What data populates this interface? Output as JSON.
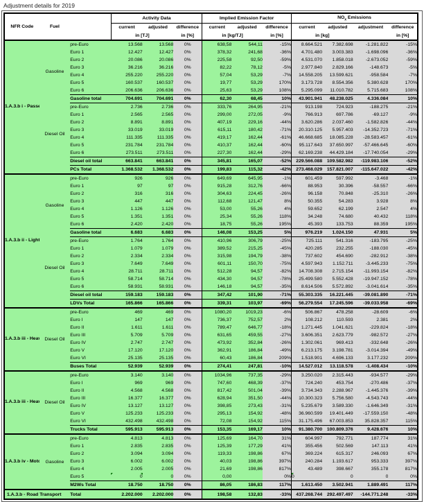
{
  "title": "Adjustment details for 2019",
  "colors": {
    "green": "#9DF39D",
    "grey": "#D9D9D9"
  },
  "header": {
    "col_nfr": "NFR Code",
    "col_fuel": "Fuel",
    "groups": [
      {
        "title": "Activity Data",
        "cols": [
          "current",
          "adjusted",
          "difference"
        ],
        "unit_val": "in [TJ]",
        "unit_dif": "in [%]"
      },
      {
        "title": "Implied Emission Factor",
        "cols": [
          "current",
          "adjusted",
          "difference"
        ],
        "unit_val": "in [kg/TJ]",
        "unit_dif": "in [%]"
      },
      {
        "title_pre": "NO",
        "title_sub": "x",
        "title_post": " Emissions",
        "cols": [
          "current",
          "adjusted",
          "adjustment",
          "difference"
        ],
        "unit_val": "in [kg]",
        "unit_dif": "in [%]"
      }
    ]
  },
  "sections": [
    {
      "nfr": "1.A.3.b i -\nPassenger\nCars",
      "groups": [
        {
          "fuel": "Gasoline",
          "rows": [
            [
              "pre-Euro",
              "13.568",
              "13.568",
              "0%",
              "638,58",
              "544,11",
              "-15%",
              "8.664.521",
              "7.382.698",
              "-1.281.822",
              "-15%"
            ],
            [
              "Euro 1",
              "12.427",
              "12.427",
              "0%",
              "378,32",
              "241,68",
              "-36%",
              "4.701.480",
              "3.003.383",
              "-1.698.096",
              "-36%"
            ],
            [
              "Euro 2",
              "20.086",
              "20.086",
              "0%",
              "225,58",
              "92,50",
              "-59%",
              "4.531.070",
              "1.858.018",
              "-2.673.052",
              "-59%"
            ],
            [
              "Euro 3",
              "36.216",
              "36.216",
              "0%",
              "82,22",
              "78,12",
              "-5%",
              "2.977.840",
              "2.829.166",
              "-148.673",
              "-5%"
            ],
            [
              "Euro 4",
              "255.220",
              "255.220",
              "0%",
              "57,04",
              "53,29",
              "-7%",
              "14.558.205",
              "13.599.621",
              "-958.584",
              "-7%"
            ],
            [
              "Euro 5",
              "160.537",
              "160.537",
              "0%",
              "19,77",
              "53,29",
              "170%",
              "3.173.728",
              "8.554.356",
              "5.380.628",
              "170%"
            ],
            [
              "Euro 6",
              "206.636",
              "206.636",
              "0%",
              "25,63",
              "53,29",
              "108%",
              "5.295.099",
              "11.010.782",
              "5.715.683",
              "108%"
            ]
          ],
          "total": [
            "Gasoline total",
            "704.691",
            "704.691",
            "0%",
            "62,30",
            "68,45",
            "10%",
            "43.901.941",
            "48.238.025",
            "4.336.084",
            "10%"
          ]
        },
        {
          "fuel": "Diesel Oil",
          "rows": [
            [
              "pre-Euro",
              "2.736",
              "2.736",
              "0%",
              "333,76",
              "264,95",
              "-21%",
              "913.198",
              "724.923",
              "-188.275",
              "-21%"
            ],
            [
              "Euro 1",
              "2.565",
              "2.565",
              "0%",
              "299,00",
              "272,05",
              "-9%",
              "766.913",
              "697.786",
              "-69.127",
              "-9%"
            ],
            [
              "Euro 2",
              "8.891",
              "8.891",
              "0%",
              "407,19",
              "229,16",
              "-44%",
              "3.620.286",
              "2.037.460",
              "-1.582.826",
              "-44%"
            ],
            [
              "Euro 3",
              "33.019",
              "33.019",
              "0%",
              "615,11",
              "180,42",
              "-71%",
              "20.310.125",
              "5.957.403",
              "-14.352.723",
              "-71%"
            ],
            [
              "Euro 4",
              "111.335",
              "111.335",
              "0%",
              "419,17",
              "162,44",
              "-61%",
              "46.668.685",
              "18.085.228",
              "-28.583.457",
              "-61%"
            ],
            [
              "Euro 5",
              "231.784",
              "231.784",
              "0%",
              "410,37",
              "162,44",
              "-60%",
              "95.117.643",
              "37.650.997",
              "-57.466.645",
              "-60%"
            ],
            [
              "Euro 6",
              "273.511",
              "273.511",
              "0%",
              "227,30",
              "162,44",
              "-29%",
              "62.169.238",
              "44.429.184",
              "-17.740.054",
              "-29%"
            ]
          ],
          "total": [
            "Diesel oil total",
            "663.841",
            "663.841",
            "0%",
            "345,81",
            "165,07",
            "-52%",
            "229.566.088",
            "109.582.982",
            "-119.983.106",
            "-52%"
          ]
        }
      ],
      "section_total": [
        "PCs Total",
        "1.368.532",
        "1.368.532",
        "0%",
        "199,83",
        "115,32",
        "-42%",
        "273.468.029",
        "157.821.007",
        "-115.647.022",
        "-42%"
      ]
    },
    {
      "nfr": "1.A.3.b ii  -\nLight Duty\nVehicles\n(LDVs)",
      "groups": [
        {
          "fuel": "Gasoline",
          "rows": [
            [
              "pre-Euro",
              "926",
              "926",
              "0%",
              "649,69",
              "645,95",
              "-1%",
              "601.459",
              "597.992",
              "-3.468",
              "-1%"
            ],
            [
              "Euro 1",
              "97",
              "97",
              "0%",
              "915,28",
              "312,76",
              "-66%",
              "88.953",
              "30.396",
              "-58.557",
              "-66%"
            ],
            [
              "Euro 2",
              "316",
              "316",
              "0%",
              "304,63",
              "224,45",
              "-26%",
              "96.158",
              "70.848",
              "-25.310",
              "-26%"
            ],
            [
              "Euro 3",
              "447",
              "447",
              "0%",
              "112,68",
              "121,47",
              "8%",
              "50.355",
              "54.283",
              "3.928",
              "8%"
            ],
            [
              "Euro 4",
              "1.126",
              "1.126",
              "0%",
              "53,00",
              "55,26",
              "4%",
              "59.652",
              "62.199",
              "2.547",
              "4%"
            ],
            [
              "Euro 5",
              "1.351",
              "1.351",
              "0%",
              "25,34",
              "55,26",
              "118%",
              "34.248",
              "74.680",
              "40.432",
              "118%"
            ],
            [
              "Euro 6",
              "2.420",
              "2.420",
              "0%",
              "18,75",
              "55,26",
              "195%",
              "45.393",
              "133.753",
              "88.359",
              "195%"
            ]
          ],
          "total": [
            "Gasoline total",
            "6.683",
            "6.683",
            "0%",
            "146,08",
            "153,25",
            "5%",
            "976.219",
            "1.024.150",
            "47.931",
            "5%"
          ]
        },
        {
          "fuel": "Diesel Oil",
          "rows": [
            [
              "pre-Euro",
              "1.764",
              "1.764",
              "0%",
              "410,96",
              "306,79",
              "-25%",
              "725.111",
              "541.316",
              "-183.795",
              "-25%"
            ],
            [
              "Euro 1",
              "1.079",
              "1.079",
              "0%",
              "389,52",
              "215,25",
              "-45%",
              "420.285",
              "232.255",
              "-188.030",
              "-45%"
            ],
            [
              "Euro 2",
              "2.334",
              "2.334",
              "0%",
              "315,98",
              "194,79",
              "-38%",
              "737.602",
              "454.690",
              "-282.912",
              "-38%"
            ],
            [
              "Euro 3",
              "7.649",
              "7.649",
              "0%",
              "601,11",
              "150,70",
              "-75%",
              "4.597.943",
              "1.152.711",
              "-3.445.233",
              "-75%"
            ],
            [
              "Euro 4",
              "28.711",
              "28.711",
              "0%",
              "512,28",
              "94,57",
              "-82%",
              "14.708.308",
              "2.715.154",
              "-11.993.154",
              "-82%"
            ],
            [
              "Euro 5",
              "58.714",
              "58.714",
              "0%",
              "434,30",
              "94,57",
              "-78%",
              "25.499.580",
              "5.552.428",
              "-19.947.152",
              "-78%"
            ],
            [
              "Euro 6",
              "58.931",
              "58.931",
              "0%",
              "146,18",
              "94,57",
              "-35%",
              "8.614.506",
              "5.572.892",
              "-3.041.614",
              "-35%"
            ]
          ],
          "total": [
            "Diesel oil total",
            "159.183",
            "159.183",
            "0%",
            "347,42",
            "101,90",
            "-71%",
            "55.303.335",
            "16.221.445",
            "-39.081.890",
            "-71%"
          ]
        }
      ],
      "section_total": [
        "LDVs Total",
        "165.866",
        "165.866",
        "0%",
        "339,31",
        "103,97",
        "-69%",
        "56.279.554",
        "17.245.596",
        "-39.033.958",
        "-69%"
      ]
    },
    {
      "nfr": "1.A.3.b iii -\nHeavy Duty\nVehicle:\nBuses",
      "groups": [
        {
          "fuel": "Diesel Oil",
          "rows": [
            [
              "pre-Euro",
              "469",
              "469",
              "0%",
              "1080,20",
              "1019,23",
              "-6%",
              "506.867",
              "478.258",
              "-28.609",
              "-6%"
            ],
            [
              "Euro I",
              "147",
              "147",
              "0%",
              "736,37",
              "752,57",
              "2%",
              "108.212",
              "110.593",
              "2.381",
              "2%"
            ],
            [
              "Euro II",
              "1.611",
              "1.611",
              "0%",
              "789,47",
              "646,77",
              "-18%",
              "1.271.445",
              "1.041.621",
              "-229.824",
              "-18%"
            ],
            [
              "Euro III",
              "5.709",
              "5.709",
              "0%",
              "631,65",
              "459,55",
              "-27%",
              "3.606.351",
              "2.623.779",
              "-982.572",
              "-27%"
            ],
            [
              "Euro IV",
              "2.747",
              "2.747",
              "0%",
              "473,92",
              "352,84",
              "-26%",
              "1.302.061",
              "969.413",
              "-332.648",
              "-26%"
            ],
            [
              "Euro V",
              "17.120",
              "17.120",
              "0%",
              "362,91",
              "186,84",
              "-49%",
              "6.213.175",
              "3.198.781",
              "-3.014.394",
              "-49%"
            ],
            [
              "Euro VI",
              "25.135",
              "25.135",
              "0%",
              "60,43",
              "186,84",
              "209%",
              "1.518.901",
              "4.696.133",
              "3.177.232",
              "209%"
            ]
          ],
          "total": [
            "Buses Total",
            "52.939",
            "52.939",
            "0%",
            "274,41",
            "247,81",
            "-10%",
            "14.527.012",
            "13.118.578",
            "-1.408.434",
            "-10%"
          ]
        }
      ],
      "section_total": null
    },
    {
      "nfr": "1.A.3.b iii -\nHeavy Duty\nVehicle:\nTrucks &\nLorries",
      "groups": [
        {
          "fuel": "Diesel Oil",
          "rows": [
            [
              "pre-Euro",
              "3.140",
              "3.140",
              "0%",
              "1034,96",
              "737,35",
              "-29%",
              "3.250.020",
              "2.315.443",
              "-934.577",
              "-29%"
            ],
            [
              "Euro I",
              "969",
              "969",
              "0%",
              "747,60",
              "468,39",
              "-37%",
              "724.240",
              "453.754",
              "-270.486",
              "-37%"
            ],
            [
              "Euro II",
              "4.568",
              "4.568",
              "0%",
              "817,42",
              "501,04",
              "-39%",
              "3.734.343",
              "2.288.967",
              "-1.445.376",
              "-39%"
            ],
            [
              "Euro III",
              "16.377",
              "16.377",
              "0%",
              "628,94",
              "351,50",
              "-44%",
              "10.300.323",
              "5.756.580",
              "-4.543.743",
              "-44%"
            ],
            [
              "Euro IV",
              "13.127",
              "13.127",
              "0%",
              "398,85",
              "273,43",
              "-31%",
              "5.235.679",
              "3.589.330",
              "-1.646.349",
              "-31%"
            ],
            [
              "Euro V",
              "125.233",
              "125.233",
              "0%",
              "295,13",
              "154,92",
              "-48%",
              "36.960.599",
              "19.401.449",
              "-17.559.150",
              "-48%"
            ],
            [
              "Euro VI",
              "432.498",
              "432.498",
              "0%",
              "72,08",
              "154,92",
              "115%",
              "31.175.496",
              "67.003.853",
              "35.828.357",
              "115%"
            ]
          ],
          "total": [
            "Trucks Total",
            "595.913",
            "595.913",
            "0%",
            "153,35",
            "169,17",
            "10%",
            "91.380.700",
            "100.809.376",
            "9.428.676",
            "10%"
          ]
        }
      ],
      "section_total": null
    },
    {
      "nfr": "1.A.3.b iv -\nMotorised\nTwo-\nWheelers\n(M2Ws)",
      "groups": [
        {
          "fuel": "Gasoline",
          "rows": [
            [
              "pre-Euro",
              "4.813",
              "4.813",
              "0%",
              "125,69",
              "164,70",
              "31%",
              "604.997",
              "792.771",
              "187.774",
              "31%"
            ],
            [
              "Euro 1",
              "2.835",
              "2.835",
              "0%",
              "125,39",
              "177,29",
              "41%",
              "355.456",
              "502.569",
              "147.113",
              "41%"
            ],
            [
              "Euro 2",
              "3.094",
              "3.094",
              "0%",
              "119,33",
              "198,86",
              "67%",
              "369.224",
              "615.317",
              "246.093",
              "67%"
            ],
            [
              "Euro 3",
              "6.002",
              "6.002",
              "0%",
              "40,03",
              "198,86",
              "397%",
              "240.284",
              "1.193.617",
              "953.333",
              "397%"
            ],
            [
              "Euro 4",
              "2.005",
              "2.005",
              "0%",
              "21,69",
              "198,86",
              "817%",
              "43.489",
              "398.667",
              "355.178",
              "817%"
            ],
            [
              "Euro 5",
              "0",
              "0",
              "0%",
              "0,00",
              "",
              "0%",
              "0",
              "0",
              "0",
              "0%"
            ]
          ],
          "marker_rows": [
            5
          ],
          "total": [
            "M2Ws Total",
            "18.750",
            "18.750",
            "0%",
            "86,05",
            "186,83",
            "117%",
            "1.613.450",
            "3.502.941",
            "1.889.491",
            "117%"
          ]
        }
      ],
      "section_total": null
    }
  ],
  "footer": {
    "label": "1.A.3.b - Road Transport",
    "sublabel": "Total",
    "values": [
      "2.202.000",
      "2.202.000",
      "0%",
      "198,58",
      "132,83",
      "-33%",
      "437.268.744",
      "292.497.497",
      "-144.771.248",
      "-33%"
    ]
  }
}
